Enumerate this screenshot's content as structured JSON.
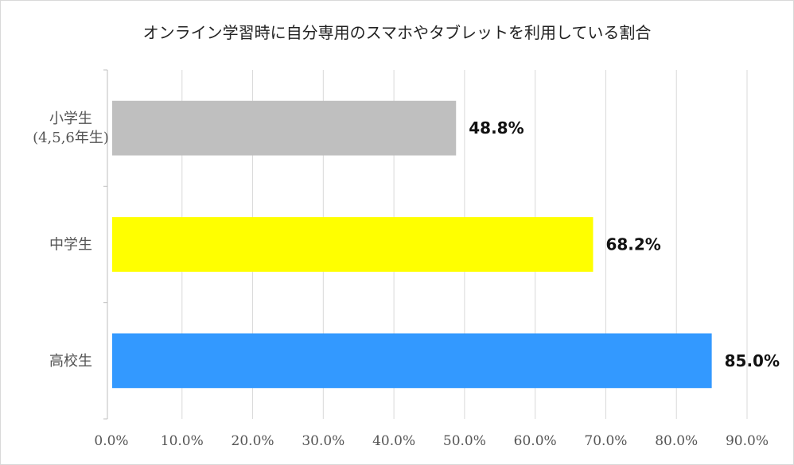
{
  "chart_data": {
    "type": "bar",
    "orientation": "horizontal",
    "title": "オンライン学習時に自分専用のスマホやタブレットを利用している割合",
    "categories": [
      [
        "小学生",
        "(4,5,6年生)"
      ],
      [
        "中学生"
      ],
      [
        "高校生"
      ]
    ],
    "values": [
      48.8,
      68.2,
      85.0
    ],
    "data_labels": [
      "48.8%",
      "68.2%",
      "85.0%"
    ],
    "colors": [
      "#bfbfbf",
      "#ffff00",
      "#3399ff"
    ],
    "xlim": [
      0,
      90
    ],
    "xticks": [
      0,
      10,
      20,
      30,
      40,
      50,
      60,
      70,
      80,
      90
    ],
    "xtick_labels": [
      "0.0%",
      "10.0%",
      "20.0%",
      "30.0%",
      "40.0%",
      "50.0%",
      "60.0%",
      "70.0%",
      "80.0%",
      "90.0%"
    ],
    "xlabel": "",
    "ylabel": "",
    "grid": true,
    "legend": "none"
  },
  "style": {
    "grid_color": "#d9d9d9",
    "axis_color": "#bfbfbf",
    "border_color": "#d9d9d9"
  }
}
